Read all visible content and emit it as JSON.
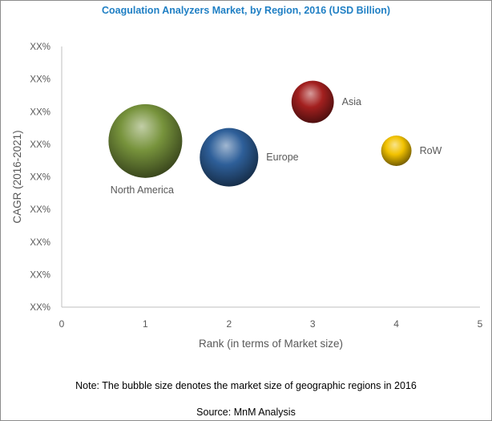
{
  "chart_data": {
    "type": "bubble",
    "title": "Coagulation Analyzers Market, by Region, 2016 (USD Billion)",
    "xlabel": "Rank (in terms of Market size)",
    "ylabel": "CAGR (2016-2021)",
    "xlim": [
      0,
      5
    ],
    "xticks": [
      "0",
      "1",
      "2",
      "3",
      "4",
      "5"
    ],
    "yticks": [
      "XX%",
      "XX%",
      "XX%",
      "XX%",
      "XX%",
      "XX%",
      "XX%",
      "XX%",
      "XX%"
    ],
    "grid": false,
    "legend": "none",
    "series": [
      {
        "label": "North America",
        "x": 1,
        "y_level": 5.1,
        "size": 1.0,
        "color": "#77933c"
      },
      {
        "label": "Europe",
        "x": 2,
        "y_level": 4.6,
        "size": 0.63,
        "color": "#2e5f99"
      },
      {
        "label": "Asia",
        "x": 3,
        "y_level": 6.3,
        "size": 0.33,
        "color": "#a3201f"
      },
      {
        "label": "RoW",
        "x": 4,
        "y_level": 4.8,
        "size": 0.17,
        "color": "#f2c200"
      }
    ]
  },
  "note": "Note: The bubble size denotes the market size of geographic regions in 2016",
  "source": "Source: MnM Analysis"
}
